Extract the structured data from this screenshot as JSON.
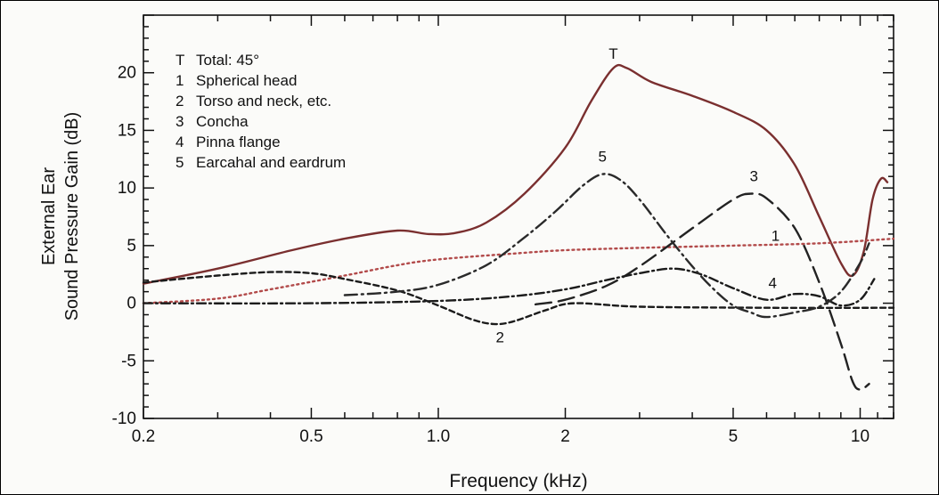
{
  "chart_data": {
    "type": "line",
    "xlabel": "Frequency (kHz)",
    "ylabel_lines": [
      "External Ear",
      "Sound Pressure Gain (dB)"
    ],
    "x_scale": "log",
    "xlim": [
      0.2,
      12
    ],
    "ylim": [
      -10,
      25
    ],
    "x_ticks": [
      0.2,
      0.5,
      1.0,
      2,
      5,
      10
    ],
    "x_tick_labels": [
      "0.2",
      "0.5",
      "1.0",
      "2",
      "5",
      "10"
    ],
    "y_ticks": [
      -10,
      -5,
      0,
      5,
      10,
      15,
      20
    ],
    "y_tick_labels": [
      "-10",
      "-5",
      "0",
      "5",
      "10",
      "15",
      "20"
    ],
    "grid": false,
    "legend_position": "top-left",
    "legend": [
      {
        "key": "T",
        "text": "Total: 45°"
      },
      {
        "key": "1",
        "text": "Spherical head"
      },
      {
        "key": "2",
        "text": "Torso and neck, etc."
      },
      {
        "key": "3",
        "text": "Concha"
      },
      {
        "key": "4",
        "text": "Pinna flange"
      },
      {
        "key": "5",
        "text": "Earcahal and eardrum"
      }
    ],
    "series": [
      {
        "key": "T",
        "label": "T",
        "label_at": [
          2.6,
          21.2
        ],
        "color": "#7a2f2f",
        "dash": "",
        "points": [
          [
            0.2,
            1.7
          ],
          [
            0.3,
            3.0
          ],
          [
            0.45,
            4.6
          ],
          [
            0.6,
            5.6
          ],
          [
            0.8,
            6.3
          ],
          [
            0.95,
            6.0
          ],
          [
            1.1,
            6.1
          ],
          [
            1.3,
            7.0
          ],
          [
            1.6,
            9.5
          ],
          [
            2.0,
            13.5
          ],
          [
            2.3,
            17.5
          ],
          [
            2.6,
            20.4
          ],
          [
            2.8,
            20.4
          ],
          [
            3.2,
            19.2
          ],
          [
            4.0,
            18.0
          ],
          [
            5.0,
            16.6
          ],
          [
            6.0,
            15.0
          ],
          [
            7.0,
            12.0
          ],
          [
            8.0,
            7.5
          ],
          [
            9.0,
            3.5
          ],
          [
            9.6,
            2.4
          ],
          [
            10.2,
            4.5
          ],
          [
            10.7,
            9.0
          ],
          [
            11.2,
            10.8
          ],
          [
            11.6,
            10.5
          ]
        ]
      },
      {
        "key": "1",
        "label": "1",
        "label_at": [
          6.3,
          5.4
        ],
        "color": "#b24a4a",
        "dash": "2,4",
        "points": [
          [
            0.2,
            0.0
          ],
          [
            0.3,
            0.4
          ],
          [
            0.4,
            1.2
          ],
          [
            0.6,
            2.4
          ],
          [
            0.8,
            3.3
          ],
          [
            1.0,
            3.8
          ],
          [
            1.5,
            4.3
          ],
          [
            2.0,
            4.6
          ],
          [
            3.0,
            4.8
          ],
          [
            5.0,
            5.0
          ],
          [
            8.0,
            5.2
          ],
          [
            12.0,
            5.6
          ]
        ]
      },
      {
        "key": "2",
        "label": "2",
        "label_at": [
          1.4,
          -3.4
        ],
        "color": "#1b1b1b",
        "dash": "6,4",
        "points": [
          [
            0.2,
            1.8
          ],
          [
            0.3,
            2.4
          ],
          [
            0.4,
            2.7
          ],
          [
            0.5,
            2.6
          ],
          [
            0.6,
            2.1
          ],
          [
            0.8,
            1.1
          ],
          [
            1.0,
            -0.2
          ],
          [
            1.2,
            -1.4
          ],
          [
            1.35,
            -1.8
          ],
          [
            1.5,
            -1.6
          ],
          [
            1.8,
            -0.6
          ],
          [
            2.1,
            0.0
          ],
          [
            3.0,
            -0.3
          ],
          [
            6.0,
            -0.4
          ],
          [
            12.0,
            -0.4
          ]
        ]
      },
      {
        "key": "3",
        "label": "3",
        "label_at": [
          5.6,
          10.6
        ],
        "color": "#222222",
        "dash": "18,8",
        "points": [
          [
            1.7,
            -0.1
          ],
          [
            2.0,
            0.3
          ],
          [
            2.5,
            1.5
          ],
          [
            3.0,
            3.2
          ],
          [
            4.0,
            6.5
          ],
          [
            5.0,
            9.0
          ],
          [
            5.5,
            9.5
          ],
          [
            6.0,
            9.1
          ],
          [
            7.0,
            6.5
          ],
          [
            8.0,
            1.8
          ],
          [
            9.0,
            -3.5
          ],
          [
            9.6,
            -6.8
          ],
          [
            10.0,
            -7.5
          ],
          [
            10.5,
            -7.0
          ]
        ]
      },
      {
        "key": "4",
        "label": "4",
        "label_at": [
          6.2,
          1.3
        ],
        "color": "#1b1b1b",
        "dash": "10,4,2,4",
        "points": [
          [
            0.2,
            0.0
          ],
          [
            0.5,
            0.0
          ],
          [
            1.0,
            0.2
          ],
          [
            1.5,
            0.6
          ],
          [
            2.0,
            1.2
          ],
          [
            2.5,
            2.0
          ],
          [
            3.0,
            2.6
          ],
          [
            3.6,
            3.0
          ],
          [
            4.2,
            2.5
          ],
          [
            5.0,
            1.3
          ],
          [
            6.0,
            0.3
          ],
          [
            7.0,
            0.8
          ],
          [
            8.0,
            0.6
          ],
          [
            9.0,
            -0.2
          ],
          [
            10.0,
            0.3
          ],
          [
            10.8,
            2.1
          ]
        ]
      },
      {
        "key": "5",
        "label": "5",
        "label_at": [
          2.45,
          12.3
        ],
        "color": "#2a2a2a",
        "dash": "14,5,2,5",
        "points": [
          [
            0.6,
            0.7
          ],
          [
            0.8,
            1.0
          ],
          [
            1.0,
            1.6
          ],
          [
            1.3,
            3.3
          ],
          [
            1.6,
            5.7
          ],
          [
            1.9,
            8.0
          ],
          [
            2.2,
            10.2
          ],
          [
            2.45,
            11.2
          ],
          [
            2.7,
            10.7
          ],
          [
            3.0,
            9.0
          ],
          [
            3.5,
            5.8
          ],
          [
            4.0,
            3.2
          ],
          [
            4.5,
            1.2
          ],
          [
            5.0,
            -0.2
          ],
          [
            5.5,
            -0.8
          ],
          [
            6.0,
            -1.2
          ],
          [
            7.0,
            -0.8
          ],
          [
            8.0,
            -0.3
          ],
          [
            9.0,
            1.0
          ],
          [
            10.0,
            3.5
          ],
          [
            10.5,
            5.2
          ]
        ]
      }
    ]
  }
}
